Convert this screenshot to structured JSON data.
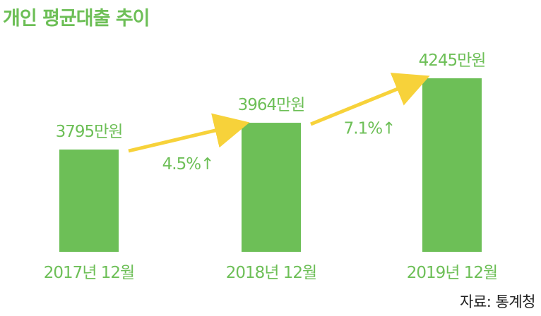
{
  "title": "개인 평균대출 추이",
  "source": "자료: 통계청",
  "colors": {
    "title": "#6dbf57",
    "bar": "#6dbf57",
    "label": "#6dbf57",
    "arrow": "#f7d23a",
    "source": "#222222"
  },
  "chart_data": {
    "type": "bar",
    "title": "개인 평균대출 추이",
    "categories": [
      "2017년 12월",
      "2018년 12월",
      "2019년 12월"
    ],
    "values": [
      3795,
      3964,
      4245
    ],
    "value_labels": [
      "3795만원",
      "3964만원",
      "4245만원"
    ],
    "unit": "만원",
    "growth": [
      {
        "from": "2017년 12월",
        "to": "2018년 12월",
        "value": 4.5,
        "label": "4.5%↑"
      },
      {
        "from": "2018년 12월",
        "to": "2019년 12월",
        "value": 7.1,
        "label": "7.1%↑"
      }
    ],
    "grid": false,
    "legend": "none"
  }
}
